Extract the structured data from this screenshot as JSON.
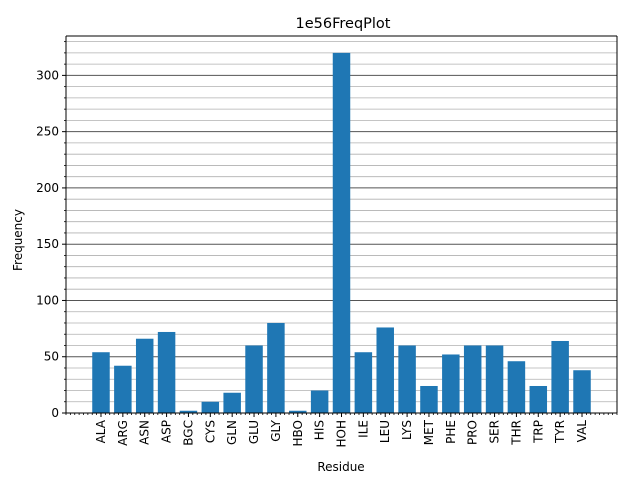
{
  "chart_data": {
    "type": "bar",
    "title": "1e56FreqPlot",
    "xlabel": "Residue",
    "ylabel": "Frequency",
    "categories": [
      "ALA",
      "ARG",
      "ASN",
      "ASP",
      "BGC",
      "CYS",
      "GLN",
      "GLU",
      "GLY",
      "HBO",
      "HIS",
      "HOH",
      "ILE",
      "LEU",
      "LYS",
      "MET",
      "PHE",
      "PRO",
      "SER",
      "THR",
      "TRP",
      "TYR",
      "VAL"
    ],
    "values": [
      54,
      42,
      66,
      72,
      2,
      10,
      18,
      60,
      80,
      2,
      20,
      320,
      54,
      76,
      60,
      24,
      52,
      60,
      60,
      46,
      24,
      64,
      38
    ],
    "ylim": [
      0,
      335
    ],
    "yticks": [
      "0",
      "50",
      "100",
      "150",
      "200",
      "250",
      "300"
    ],
    "grid": "horizontal major and minor",
    "bar_color": "#1f77b4"
  }
}
